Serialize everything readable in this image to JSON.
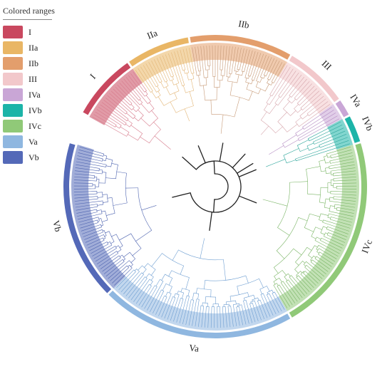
{
  "legend": {
    "title": "Colored ranges",
    "items": [
      {
        "label": "I",
        "color": "#c9485f"
      },
      {
        "label": "IIa",
        "color": "#e9b665"
      },
      {
        "label": "IIb",
        "color": "#e39e6c"
      },
      {
        "label": "III",
        "color": "#f2c8cb"
      },
      {
        "label": "IVa",
        "color": "#c9a6d6"
      },
      {
        "label": "IVb",
        "color": "#1cb4a8"
      },
      {
        "label": "IVc",
        "color": "#90c978"
      },
      {
        "label": "Va",
        "color": "#8fb7e0"
      },
      {
        "label": "Vb",
        "color": "#5469b8"
      }
    ]
  },
  "clade_labels": [
    "I",
    "IIa",
    "IIb",
    "III",
    "IVa",
    "IVb",
    "IVc",
    "Va",
    "Vb"
  ],
  "clades": [
    {
      "label": "I",
      "color": "#c9485f",
      "branch_color": "#d77b8c",
      "start_deg": 209,
      "end_deg": 235,
      "leaves": 22,
      "text": "I"
    },
    {
      "label": "IIa",
      "color": "#e9b665",
      "branch_color": "#e3b677",
      "start_deg": 235,
      "end_deg": 260,
      "leaves": 20,
      "text": "IIa"
    },
    {
      "label": "IIb",
      "color": "#e39e6c",
      "branch_color": "#c79a77",
      "start_deg": 260,
      "end_deg": 300,
      "leaves": 34,
      "text": "IIb"
    },
    {
      "label": "III",
      "color": "#f2c8cb",
      "branch_color": "#d7a7ad",
      "start_deg": 300,
      "end_deg": 325,
      "leaves": 18,
      "text": "III"
    },
    {
      "label": "IVa",
      "color": "#c9a6d6",
      "branch_color": "#b48bc2",
      "start_deg": 325,
      "end_deg": 332,
      "leaves": 5,
      "text": "IVa"
    },
    {
      "label": "IVb",
      "color": "#1cb4a8",
      "branch_color": "#30a79d",
      "start_deg": 332,
      "end_deg": 343,
      "leaves": 8,
      "text": "IVb"
    },
    {
      "label": "IVc",
      "color": "#90c978",
      "branch_color": "#7ab565",
      "start_deg": 343,
      "end_deg": 420,
      "leaves": 62,
      "text": "IVc"
    },
    {
      "label": "Va",
      "color": "#8fb7e0",
      "branch_color": "#6f9fd2",
      "start_deg": 420,
      "end_deg": 495,
      "leaves": 58,
      "text": "Va"
    },
    {
      "label": "Vb",
      "color": "#5469b8",
      "branch_color": "#4e64b0",
      "start_deg": 495,
      "end_deg": 557,
      "leaves": 50,
      "text": "Vb"
    }
  ]
}
